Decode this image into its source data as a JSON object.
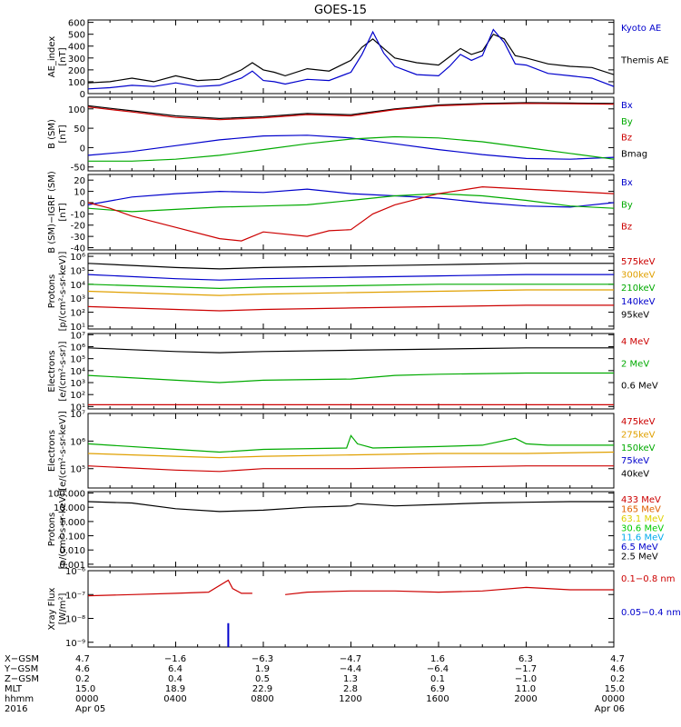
{
  "title": "GOES-15",
  "chart_data": [
    {
      "id": "ae",
      "type": "line",
      "ylabel": "AE_index\n[nT]",
      "yticks": [
        "600",
        "500",
        "400",
        "300",
        "200",
        "100",
        "0"
      ],
      "ytick_values": [
        600,
        500,
        400,
        300,
        200,
        100,
        0
      ],
      "ylim": [
        0,
        620
      ],
      "scale": "linear",
      "legend": [
        {
          "label": "Kyoto AE",
          "color": "#0000cc"
        },
        {
          "label": "Themis AE",
          "color": "#000000"
        }
      ],
      "series": [
        {
          "name": "Themis AE",
          "color": "#000000",
          "x": [
            0,
            1,
            2,
            3,
            4,
            5,
            6,
            7,
            7.5,
            8,
            8.5,
            9,
            10,
            11,
            12,
            12.5,
            13,
            13.5,
            14,
            15,
            16,
            16.5,
            17,
            17.5,
            18,
            18.5,
            19,
            19.5,
            20,
            21,
            22,
            23,
            24
          ],
          "y": [
            90,
            100,
            130,
            100,
            150,
            110,
            120,
            200,
            260,
            200,
            180,
            150,
            210,
            190,
            280,
            390,
            460,
            380,
            300,
            260,
            240,
            310,
            380,
            330,
            360,
            500,
            460,
            320,
            300,
            250,
            230,
            220,
            160
          ]
        },
        {
          "name": "Kyoto AE",
          "color": "#0000cc",
          "x": [
            0,
            1,
            2,
            3,
            4,
            5,
            6,
            7,
            7.5,
            8,
            8.5,
            9,
            10,
            11,
            12,
            12.5,
            13,
            13.5,
            14,
            15,
            16,
            16.5,
            17,
            17.5,
            18,
            18.5,
            19,
            19.5,
            20,
            21,
            22,
            23,
            24
          ],
          "y": [
            40,
            50,
            70,
            60,
            90,
            60,
            70,
            130,
            190,
            110,
            100,
            80,
            120,
            110,
            180,
            330,
            520,
            340,
            230,
            160,
            150,
            230,
            330,
            280,
            320,
            540,
            430,
            250,
            240,
            170,
            150,
            130,
            60
          ]
        }
      ]
    },
    {
      "id": "bsm",
      "type": "line",
      "ylabel": "B (SM)\n[nT]",
      "yticks": [
        "100",
        "50",
        "0",
        "-50"
      ],
      "ytick_values": [
        100,
        50,
        0,
        -50
      ],
      "ylim": [
        -60,
        130
      ],
      "scale": "linear",
      "legend": [
        {
          "label": "Bx",
          "color": "#0000cc"
        },
        {
          "label": "By",
          "color": "#00aa00"
        },
        {
          "label": "Bz",
          "color": "#cc0000"
        },
        {
          "label": "Bmag",
          "color": "#000000"
        }
      ],
      "series": [
        {
          "name": "Bmag",
          "color": "#000000",
          "x": [
            0,
            2,
            4,
            6,
            8,
            10,
            12,
            14,
            16,
            18,
            20,
            22,
            24
          ],
          "y": [
            108,
            95,
            82,
            75,
            80,
            88,
            85,
            100,
            110,
            114,
            116,
            115,
            114
          ]
        },
        {
          "name": "Bz",
          "color": "#cc0000",
          "x": [
            0,
            2,
            4,
            6,
            8,
            10,
            12,
            14,
            16,
            18,
            20,
            22,
            24
          ],
          "y": [
            105,
            92,
            78,
            72,
            77,
            85,
            82,
            98,
            108,
            112,
            114,
            113,
            112
          ]
        },
        {
          "name": "Bx",
          "color": "#0000cc",
          "x": [
            0,
            2,
            4,
            6,
            8,
            10,
            12,
            14,
            16,
            18,
            20,
            22,
            24
          ],
          "y": [
            -20,
            -10,
            5,
            20,
            30,
            32,
            25,
            10,
            -5,
            -18,
            -28,
            -30,
            -25
          ]
        },
        {
          "name": "By",
          "color": "#00aa00",
          "x": [
            0,
            2,
            4,
            6,
            8,
            10,
            12,
            14,
            16,
            18,
            20,
            22,
            24
          ],
          "y": [
            -35,
            -35,
            -30,
            -20,
            -5,
            10,
            22,
            28,
            25,
            15,
            0,
            -15,
            -30
          ]
        }
      ]
    },
    {
      "id": "bdiff",
      "type": "line",
      "ylabel": "B (SM)−IGRF (SM)\n[nT]",
      "yticks": [
        "20",
        "10",
        "0",
        "-10",
        "-20",
        "-30",
        "-40"
      ],
      "ytick_values": [
        20,
        10,
        0,
        -10,
        -20,
        -30,
        -40
      ],
      "ylim": [
        -42,
        25
      ],
      "scale": "linear",
      "legend": [
        {
          "label": "Bx",
          "color": "#0000cc"
        },
        {
          "label": "By",
          "color": "#00aa00"
        },
        {
          "label": "Bz",
          "color": "#cc0000"
        }
      ],
      "series": [
        {
          "name": "Bx",
          "color": "#0000cc",
          "x": [
            0,
            2,
            4,
            6,
            8,
            10,
            12,
            14,
            16,
            18,
            20,
            22,
            24
          ],
          "y": [
            -2,
            5,
            8,
            10,
            9,
            12,
            8,
            6,
            4,
            0,
            -3,
            -4,
            0
          ]
        },
        {
          "name": "By",
          "color": "#00aa00",
          "x": [
            0,
            2,
            4,
            6,
            8,
            10,
            12,
            14,
            16,
            18,
            20,
            22,
            24
          ],
          "y": [
            -5,
            -8,
            -6,
            -4,
            -3,
            -2,
            2,
            6,
            8,
            6,
            2,
            -3,
            -5
          ]
        },
        {
          "name": "Bz",
          "color": "#cc0000",
          "x": [
            0,
            1,
            2,
            4,
            6,
            7,
            8,
            10,
            11,
            12,
            13,
            14,
            16,
            18,
            20,
            22,
            24
          ],
          "y": [
            0,
            -5,
            -12,
            -22,
            -32,
            -34,
            -26,
            -30,
            -25,
            -24,
            -10,
            -2,
            8,
            14,
            12,
            10,
            8
          ]
        }
      ]
    },
    {
      "id": "protons_mag",
      "type": "line",
      "ylabel": "Protons\n[p/(cm²-s-sr-keV)]",
      "yticks": [
        "10⁶",
        "10⁵",
        "10⁴",
        "10³",
        "10²",
        "10¹"
      ],
      "ytick_values": [
        6,
        5,
        4,
        3,
        2,
        1
      ],
      "ylim": [
        0.8,
        6.2
      ],
      "scale": "log10",
      "legend": [
        {
          "label": "575keV",
          "color": "#cc0000"
        },
        {
          "label": "300keV",
          "color": "#e0a000"
        },
        {
          "label": "210keV",
          "color": "#00aa00"
        },
        {
          "label": "140keV",
          "color": "#0000cc"
        },
        {
          "label": "95keV",
          "color": "#000000"
        }
      ],
      "series": [
        {
          "name": "95keV",
          "color": "#000000",
          "x": [
            0,
            4,
            6,
            8,
            12,
            16,
            20,
            24
          ],
          "y": [
            5.5,
            5.2,
            5.1,
            5.2,
            5.3,
            5.4,
            5.5,
            5.5
          ]
        },
        {
          "name": "140keV",
          "color": "#0000cc",
          "x": [
            0,
            4,
            6,
            8,
            12,
            16,
            20,
            24
          ],
          "y": [
            4.7,
            4.4,
            4.3,
            4.4,
            4.5,
            4.6,
            4.7,
            4.7
          ]
        },
        {
          "name": "210keV",
          "color": "#00aa00",
          "x": [
            0,
            4,
            6,
            8,
            12,
            16,
            20,
            24
          ],
          "y": [
            4.0,
            3.8,
            3.7,
            3.8,
            3.9,
            4.0,
            4.0,
            4.0
          ]
        },
        {
          "name": "300keV",
          "color": "#e0a000",
          "x": [
            0,
            4,
            6,
            8,
            12,
            16,
            20,
            24
          ],
          "y": [
            3.5,
            3.3,
            3.2,
            3.3,
            3.4,
            3.5,
            3.6,
            3.6
          ]
        },
        {
          "name": "575keV",
          "color": "#cc0000",
          "x": [
            0,
            4,
            6,
            8,
            12,
            16,
            20,
            24
          ],
          "y": [
            2.4,
            2.2,
            2.1,
            2.2,
            2.3,
            2.4,
            2.5,
            2.5
          ]
        }
      ]
    },
    {
      "id": "electrons_mev",
      "type": "line",
      "ylabel": "Electrons\n[e/(cm²-s-sr)]",
      "yticks": [
        "10⁷",
        "10⁶",
        "10⁵",
        "10⁴",
        "10³",
        "10²",
        "10¹"
      ],
      "ytick_values": [
        7,
        6,
        5,
        4,
        3,
        2,
        1
      ],
      "ylim": [
        0.8,
        7.1
      ],
      "scale": "log10",
      "legend": [
        {
          "label": "4 MeV",
          "color": "#cc0000"
        },
        {
          "label": "2 MeV",
          "color": "#00aa00"
        },
        {
          "label": "0.6 MeV",
          "color": "#000000"
        }
      ],
      "series": [
        {
          "name": "0.6 MeV",
          "color": "#000000",
          "x": [
            0,
            4,
            6,
            8,
            12,
            16,
            20,
            24
          ],
          "y": [
            5.9,
            5.6,
            5.5,
            5.6,
            5.7,
            5.8,
            5.9,
            5.9
          ]
        },
        {
          "name": "2 MeV",
          "color": "#00aa00",
          "x": [
            0,
            4,
            6,
            8,
            12,
            14,
            16,
            20,
            24
          ],
          "y": [
            3.6,
            3.2,
            3.0,
            3.2,
            3.3,
            3.6,
            3.7,
            3.8,
            3.8
          ]
        },
        {
          "name": "4 MeV",
          "color": "#cc0000",
          "x": [
            0,
            24
          ],
          "y": [
            1.15,
            1.15
          ]
        }
      ]
    },
    {
      "id": "electrons_kev",
      "type": "line",
      "ylabel": "Electrons\n[e/(cm²-s-sr-keV)]",
      "yticks": [
        "10⁷",
        "10⁶",
        "10⁵"
      ],
      "ytick_values": [
        7,
        6,
        5
      ],
      "ylim": [
        4.3,
        7.0
      ],
      "scale": "log10",
      "legend": [
        {
          "label": "475keV",
          "color": "#cc0000"
        },
        {
          "label": "275keV",
          "color": "#e0a000"
        },
        {
          "label": "150keV",
          "color": "#00aa00"
        },
        {
          "label": "75keV",
          "color": "#0000cc"
        },
        {
          "label": "40keV",
          "color": "#000000"
        }
      ],
      "series": [
        {
          "name": "150keV",
          "color": "#00aa00",
          "x": [
            0,
            4,
            6,
            8,
            11.8,
            12,
            12.3,
            13,
            16,
            18,
            19.5,
            20,
            21,
            24
          ],
          "y": [
            5.9,
            5.7,
            5.6,
            5.7,
            5.75,
            6.2,
            5.9,
            5.75,
            5.8,
            5.85,
            6.1,
            5.9,
            5.85,
            5.85
          ]
        },
        {
          "name": "275keV",
          "color": "#e0a000",
          "x": [
            0,
            4,
            6,
            8,
            12,
            16,
            20,
            24
          ],
          "y": [
            5.55,
            5.45,
            5.4,
            5.45,
            5.5,
            5.55,
            5.55,
            5.6
          ]
        },
        {
          "name": "475keV",
          "color": "#cc0000",
          "x": [
            0,
            4,
            6,
            8,
            12,
            16,
            20,
            24
          ],
          "y": [
            5.1,
            4.95,
            4.9,
            5.0,
            5.0,
            5.05,
            5.1,
            5.1
          ]
        }
      ]
    },
    {
      "id": "protons_mev",
      "type": "line",
      "ylabel": "Protons\n[p/(cm²-s-sr-keV)]",
      "yticks": [
        "100.000",
        "10.000",
        "1.000",
        "0.100",
        "0.010",
        "0.001"
      ],
      "ytick_values": [
        2,
        1,
        0,
        -1,
        -2,
        -3
      ],
      "ylim": [
        -3.2,
        2.1
      ],
      "scale": "log10",
      "legend": [
        {
          "label": "433 MeV",
          "color": "#cc0000"
        },
        {
          "label": "165 MeV",
          "color": "#e06000"
        },
        {
          "label": "63.1 MeV",
          "color": "#e0d000"
        },
        {
          "label": "30.6 MeV",
          "color": "#00cc00"
        },
        {
          "label": "11.6 MeV",
          "color": "#00aaee"
        },
        {
          "label": "6.5 MeV",
          "color": "#0000cc"
        },
        {
          "label": "2.5 MeV",
          "color": "#000000"
        }
      ],
      "series": [
        {
          "name": "2.5 MeV",
          "color": "#000000",
          "x": [
            0,
            2,
            4,
            6,
            8,
            10,
            12,
            12.3,
            14,
            16,
            18,
            20,
            22,
            24
          ],
          "y": [
            1.4,
            1.3,
            0.9,
            0.7,
            0.8,
            1.0,
            1.1,
            1.25,
            1.1,
            1.2,
            1.3,
            1.35,
            1.4,
            1.4
          ]
        }
      ]
    },
    {
      "id": "xray",
      "type": "line",
      "ylabel": "Xray Flux\n[W/m²]",
      "yticks": [
        "10⁻⁶",
        "10⁻⁷",
        "10⁻⁸",
        "10⁻⁹"
      ],
      "ytick_values": [
        -6,
        -7,
        -8,
        -9
      ],
      "ylim": [
        -9.2,
        -6.0
      ],
      "scale": "log10",
      "legend": [
        {
          "label": "0.1−0.8 nm",
          "color": "#cc0000"
        },
        {
          "label": "0.05−0.4 nm",
          "color": "#0000cc"
        }
      ],
      "series": [
        {
          "name": "0.1-0.8 nm",
          "color": "#cc0000",
          "x": [
            0,
            2,
            4,
            5.5,
            6.4,
            6.6,
            7.0,
            7.5,
            8,
            9,
            10,
            12,
            14,
            16,
            18,
            20,
            22,
            24
          ],
          "y": [
            -7.05,
            -7.0,
            -6.95,
            -6.9,
            -6.4,
            -6.75,
            -6.95,
            -6.95,
            "gap",
            -7.0,
            -6.9,
            -6.85,
            -6.85,
            -6.9,
            -6.85,
            -6.7,
            -6.8,
            -6.8
          ]
        },
        {
          "name": "0.05-0.4 nm",
          "color": "#0000cc",
          "x": [
            6.4
          ],
          "y": [
            -8.2
          ]
        }
      ]
    }
  ],
  "footer": {
    "rows": [
      {
        "label": "X−GSM",
        "values": [
          "4.7",
          "−1.6",
          "−6.3",
          "−4.7",
          "1.6",
          "6.3",
          "4.7"
        ]
      },
      {
        "label": "Y−GSM",
        "values": [
          "4.6",
          "6.4",
          "1.9",
          "−4.4",
          "−6.4",
          "−1.7",
          "4.6"
        ]
      },
      {
        "label": "Z−GSM",
        "values": [
          "0.2",
          "0.4",
          "0.5",
          "1.3",
          "0.1",
          "−1.0",
          "0.2"
        ]
      },
      {
        "label": "MLT",
        "values": [
          "15.0",
          "18.9",
          "22.9",
          "2.8",
          "6.9",
          "11.0",
          "15.0"
        ]
      },
      {
        "label": "hhmm",
        "values": [
          "0000",
          "0400",
          "0800",
          "1200",
          "1600",
          "2000",
          "0000"
        ]
      },
      {
        "label": "2016",
        "values": [
          "Apr 05",
          "",
          "",
          "",
          "",
          "",
          "Apr 06"
        ]
      }
    ]
  }
}
